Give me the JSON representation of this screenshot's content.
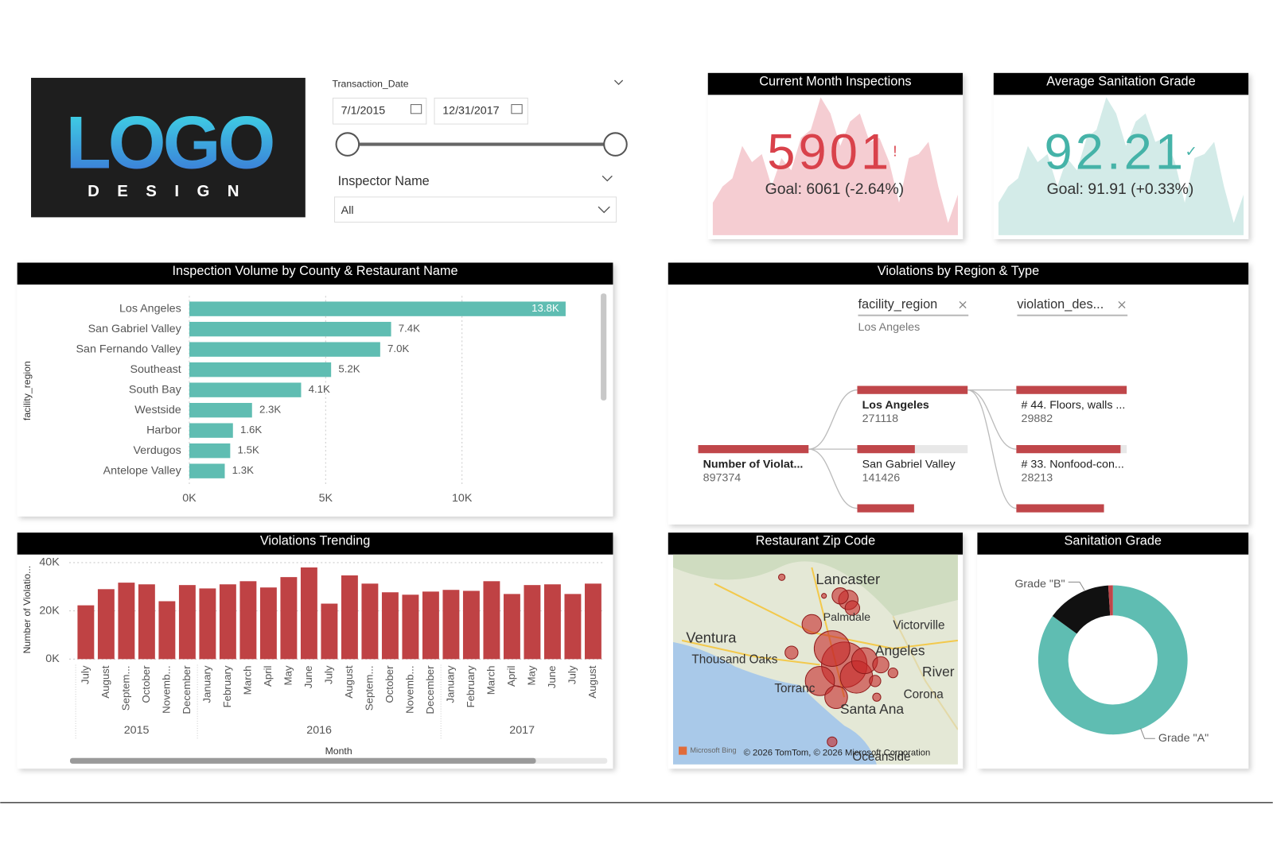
{
  "logo": {
    "title": "LOGO",
    "subtitle": "DESIGN"
  },
  "filters": {
    "date_label": "Transaction_Date",
    "start": "7/1/2015",
    "end": "12/31/2017",
    "inspector_label": "Inspector Name",
    "inspector_value": "All"
  },
  "kpis": [
    {
      "title": "Current Month Inspections",
      "value": 5901,
      "status": "!",
      "goal": "Goal: 6061 (-2.64%)",
      "color": "#d9424b",
      "area_color": "#f5cdd2"
    },
    {
      "title": "Average Sanitation Grade",
      "value": 92.21,
      "status": "✓",
      "goal": "Goal: 91.91 (+0.33%)",
      "color": "#45b3a8",
      "area_color": "#d3ebe8"
    }
  ],
  "chart_data": [
    {
      "type": "hbar",
      "title": "Inspection Volume by County & Restaurant Name",
      "y_label": "facility_region",
      "categories": [
        "Los Angeles",
        "San Gabriel Valley",
        "San Fernando Valley",
        "Southeast",
        "South Bay",
        "Westside",
        "Harbor",
        "Verdugos",
        "Antelope Valley"
      ],
      "values": [
        13800,
        7400,
        7000,
        5200,
        4100,
        2300,
        1600,
        1500,
        1300
      ],
      "value_labels": [
        "13.8K",
        "7.4K",
        "7.0K",
        "5.2K",
        "4.1K",
        "2.3K",
        "1.6K",
        "1.5K",
        "1.3K"
      ],
      "color": "#5fbdb2",
      "xlim": [
        0,
        15000
      ],
      "xticks": [
        {
          "value": 0,
          "label": "0K"
        },
        {
          "value": 5000,
          "label": "5K"
        },
        {
          "value": 10000,
          "label": "10K"
        }
      ],
      "grid": true
    },
    {
      "type": "bar",
      "title": "Violations Trending",
      "y_label": "Number of Violatio...",
      "x_label": "Month",
      "categories": [
        "July",
        "August",
        "Septem...",
        "October",
        "Novemb...",
        "December",
        "January",
        "February",
        "March",
        "April",
        "May",
        "June",
        "July",
        "August",
        "Septem...",
        "October",
        "Novemb...",
        "December",
        "January",
        "February",
        "March",
        "April",
        "May",
        "June",
        "July",
        "August"
      ],
      "x_groups": [
        "2015",
        "2016",
        "2017"
      ],
      "values": [
        22300,
        29000,
        31700,
        31000,
        24000,
        30700,
        29300,
        31000,
        32300,
        29700,
        34000,
        38000,
        23000,
        34700,
        31300,
        27700,
        26700,
        28000,
        28700,
        28300,
        32300,
        27000,
        30700,
        31000,
        27000,
        31300
      ],
      "color": "#bf4244",
      "ylim": [
        0,
        40000
      ],
      "yticks": [
        {
          "value": 0,
          "label": "0K"
        },
        {
          "value": 20000,
          "label": "20K"
        },
        {
          "value": 40000,
          "label": "40K"
        }
      ],
      "grid": true
    },
    {
      "type": "donut",
      "title": "Sanitation Grade",
      "categories": [
        "Grade \"A\"",
        "Grade \"B\"",
        null
      ],
      "values": [
        85,
        14,
        1
      ],
      "colors": [
        "#5fbdb2",
        "#111111",
        "#c0464a"
      ]
    }
  ],
  "decomposition": {
    "title": "Violations by Region & Type",
    "columns": [
      "facility_region",
      "violation_des..."
    ],
    "filter": "Los Angeles",
    "root": {
      "label": "Number of Violat...",
      "value": 897374
    },
    "level1": [
      {
        "label": "Los Angeles",
        "value": 271118
      },
      {
        "label": "San Gabriel Valley",
        "value": 141426
      }
    ],
    "level2": [
      {
        "label": "# 44. Floors, walls ...",
        "value": 29882
      },
      {
        "label": "# 33. Nonfood-con...",
        "value": 28213
      }
    ],
    "color": "#c0464a"
  },
  "map": {
    "title": "Restaurant Zip Code",
    "places": [
      "Lancaster",
      "Palmdale",
      "Victorville",
      "Ventura",
      "Thousand Oaks",
      "Angeles",
      "River",
      "Torranc",
      "Corona",
      "Santa Ana",
      "Oceanside"
    ],
    "credit": "Microsoft Bing",
    "copyright": "© 2026 TomTom, © 2026 Microsoft Corporation"
  }
}
